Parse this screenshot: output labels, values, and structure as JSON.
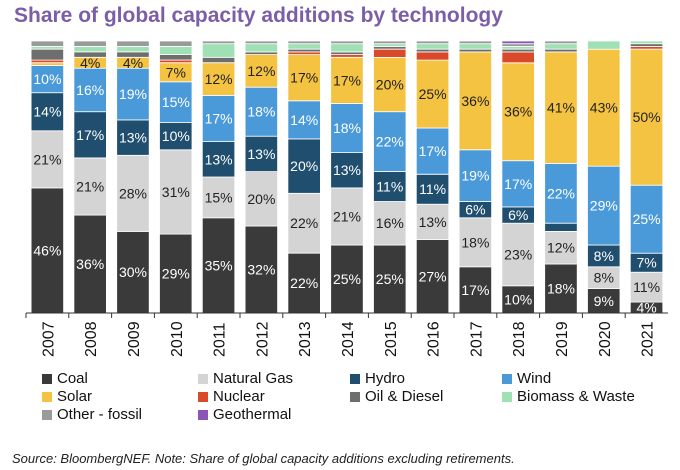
{
  "title": "Share of global capacity additions by technology",
  "source": "Source: BloombergNEF. Note: Share of global capacity additions excluding retirements.",
  "colors": {
    "Coal": "#3a3a3a",
    "Natural Gas": "#d4d4d4",
    "Hydro": "#1f4e6e",
    "Wind": "#4a9ad9",
    "Solar": "#f5c342",
    "Nuclear": "#d94a2b",
    "Oil & Diesel": "#6e6e6e",
    "Biomass & Waste": "#9fe0b4",
    "Other - fossil": "#9a9a9a",
    "Geothermal": "#8a55b5"
  },
  "chart_data": {
    "type": "bar",
    "stacked": true,
    "categories": [
      "2007",
      "2008",
      "2009",
      "2010",
      "2011",
      "2012",
      "2013",
      "2014",
      "2015",
      "2016",
      "2017",
      "2018",
      "2019",
      "2020",
      "2021"
    ],
    "ylim": [
      0,
      100
    ],
    "legend_position": "bottom",
    "series": [
      {
        "name": "Coal",
        "values": [
          46,
          36,
          30,
          29,
          35,
          32,
          22,
          25,
          25,
          27,
          17,
          10,
          18,
          9,
          4
        ]
      },
      {
        "name": "Natural Gas",
        "values": [
          21,
          21,
          28,
          31,
          15,
          20,
          22,
          21,
          16,
          13,
          18,
          23,
          12,
          8,
          11
        ]
      },
      {
        "name": "Hydro",
        "values": [
          14,
          17,
          13,
          10,
          13,
          13,
          20,
          13,
          11,
          11,
          6,
          6,
          3,
          8,
          7
        ]
      },
      {
        "name": "Wind",
        "values": [
          10,
          16,
          19,
          15,
          17,
          18,
          14,
          18,
          22,
          17,
          19,
          17,
          22,
          29,
          25
        ]
      },
      {
        "name": "Solar",
        "values": [
          1,
          4,
          4,
          7,
          12,
          12,
          17,
          17,
          20,
          25,
          36,
          36,
          41,
          43,
          50
        ]
      },
      {
        "name": "Nuclear",
        "values": [
          1,
          0,
          0,
          1,
          0,
          0,
          1,
          1,
          3,
          3,
          0,
          4,
          0,
          0,
          1
        ]
      },
      {
        "name": "Oil & Diesel",
        "values": [
          4,
          2,
          2,
          2,
          2,
          1,
          1,
          1,
          1,
          1,
          1,
          1,
          1,
          0,
          1
        ]
      },
      {
        "name": "Biomass & Waste",
        "values": [
          1,
          2,
          2,
          3,
          5,
          3,
          2,
          3,
          1,
          2,
          2,
          1,
          2,
          3,
          1
        ]
      },
      {
        "name": "Other - fossil",
        "values": [
          2,
          2,
          2,
          2,
          1,
          1,
          1,
          1,
          1,
          1,
          1,
          1,
          1,
          0,
          0
        ]
      },
      {
        "name": "Geothermal",
        "values": [
          0,
          0,
          0,
          0,
          0,
          0,
          0,
          0,
          0,
          0,
          0,
          1,
          0,
          0,
          0
        ]
      }
    ],
    "data_labels": {
      "Coal": [
        "46%",
        "36%",
        "30%",
        "29%",
        "35%",
        "32%",
        "22%",
        "25%",
        "25%",
        "27%",
        "17%",
        "10%",
        "18%",
        "9%",
        "4%"
      ],
      "Natural Gas": [
        "21%",
        "21%",
        "28%",
        "31%",
        "15%",
        "20%",
        "22%",
        "21%",
        "16%",
        "13%",
        "18%",
        "23%",
        "12%",
        "8%",
        "11%"
      ],
      "Hydro": [
        "14%",
        "17%",
        "13%",
        "10%",
        "13%",
        "13%",
        "20%",
        "13%",
        "11%",
        "11%",
        "6%",
        "6%",
        "",
        "8%",
        "7%"
      ],
      "Wind": [
        "10%",
        "16%",
        "19%",
        "15%",
        "17%",
        "18%",
        "14%",
        "18%",
        "22%",
        "17%",
        "19%",
        "17%",
        "22%",
        "29%",
        "25%"
      ],
      "Solar": [
        "",
        "4%",
        "4%",
        "7%",
        "12%",
        "12%",
        "17%",
        "17%",
        "20%",
        "25%",
        "36%",
        "36%",
        "41%",
        "43%",
        "50%"
      ]
    }
  }
}
